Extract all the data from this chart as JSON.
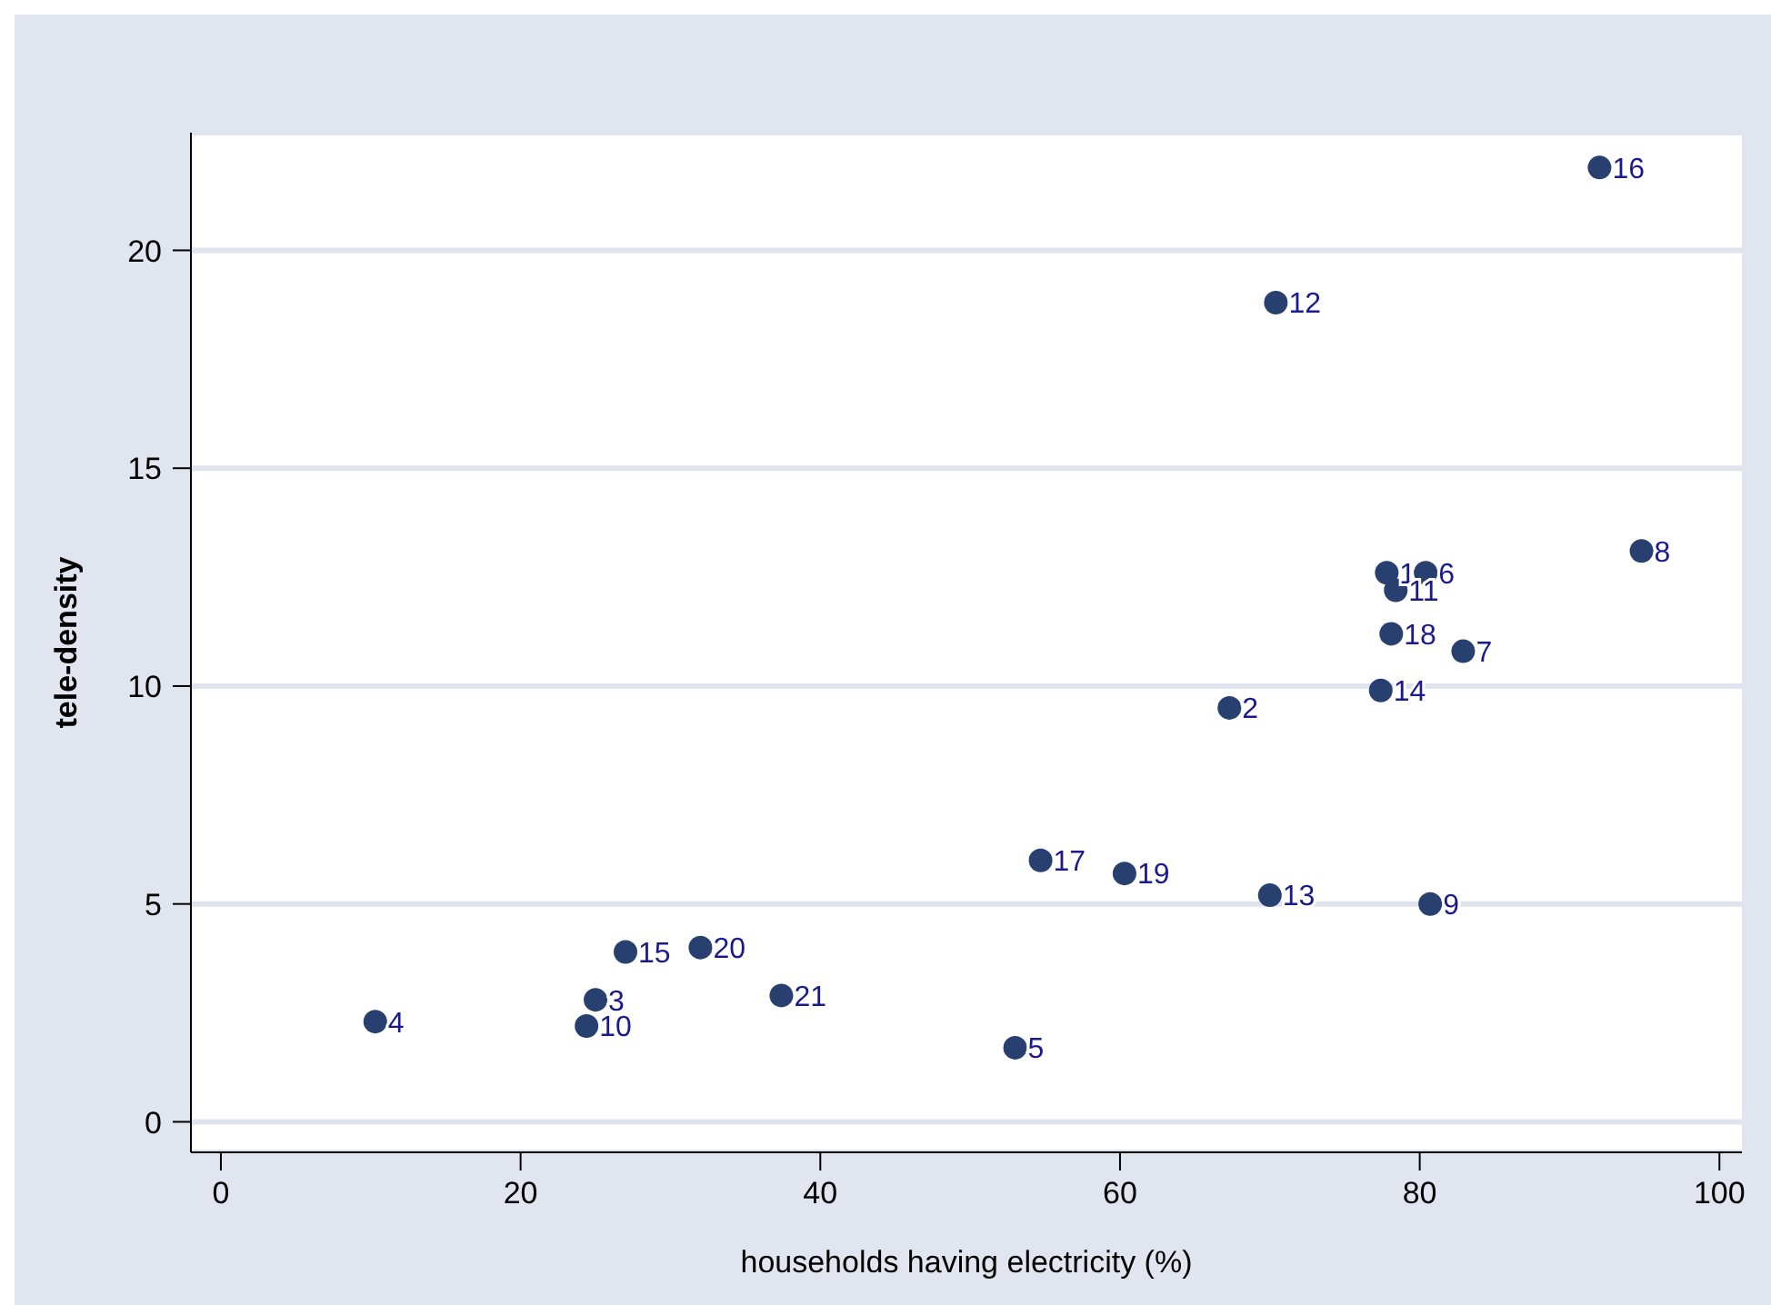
{
  "chart_data": {
    "type": "scatter",
    "xlabel": "households having electricity (%)",
    "ylabel": "tele-density",
    "x": [
      77.8,
      67.3,
      25.0,
      10.3,
      53.0,
      80.4,
      82.9,
      94.8,
      80.7,
      24.4,
      78.4,
      70.4,
      70.0,
      77.4,
      27.0,
      92.0,
      54.7,
      78.1,
      60.3,
      32.0,
      37.4
    ],
    "series": [
      {
        "color": "#27406f",
        "values": [
          12.6,
          9.5,
          2.8,
          2.3,
          1.7,
          12.6,
          10.8,
          13.1,
          5.0,
          2.2,
          12.2,
          18.8,
          5.2,
          9.9,
          3.9,
          21.9,
          6.0,
          11.2,
          5.7,
          4.0,
          2.9
        ]
      }
    ],
    "xlim": [
      -2,
      101.5
    ],
    "xticks": [
      0,
      20,
      40,
      60,
      80,
      100
    ],
    "ylim": [
      -0.7,
      22.7
    ],
    "yticks": [
      0,
      5,
      10,
      15,
      20
    ],
    "grid": "y",
    "marker": "circle",
    "legend": false,
    "annotations": [
      {
        "text": "1",
        "x": 77.8,
        "y": 12.6
      },
      {
        "text": "2",
        "x": 67.3,
        "y": 9.5
      },
      {
        "text": "3",
        "x": 25.0,
        "y": 2.8
      },
      {
        "text": "4",
        "x": 10.3,
        "y": 2.3
      },
      {
        "text": "5",
        "x": 53.0,
        "y": 1.7
      },
      {
        "text": "6",
        "x": 80.4,
        "y": 12.6
      },
      {
        "text": "7",
        "x": 82.9,
        "y": 10.8
      },
      {
        "text": "8",
        "x": 94.8,
        "y": 13.1
      },
      {
        "text": "9",
        "x": 80.7,
        "y": 5.0
      },
      {
        "text": "10",
        "x": 24.4,
        "y": 2.2
      },
      {
        "text": "11",
        "x": 78.4,
        "y": 12.2
      },
      {
        "text": "12",
        "x": 70.4,
        "y": 18.8
      },
      {
        "text": "13",
        "x": 70.0,
        "y": 5.2
      },
      {
        "text": "14",
        "x": 77.4,
        "y": 9.9
      },
      {
        "text": "15",
        "x": 27.0,
        "y": 3.9
      },
      {
        "text": "16",
        "x": 92.0,
        "y": 21.9
      },
      {
        "text": "17",
        "x": 54.7,
        "y": 6.0
      },
      {
        "text": "18",
        "x": 78.1,
        "y": 11.2
      },
      {
        "text": "19",
        "x": 60.3,
        "y": 5.7
      },
      {
        "text": "20",
        "x": 32.0,
        "y": 4.0
      },
      {
        "text": "21",
        "x": 37.4,
        "y": 2.9
      }
    ]
  }
}
